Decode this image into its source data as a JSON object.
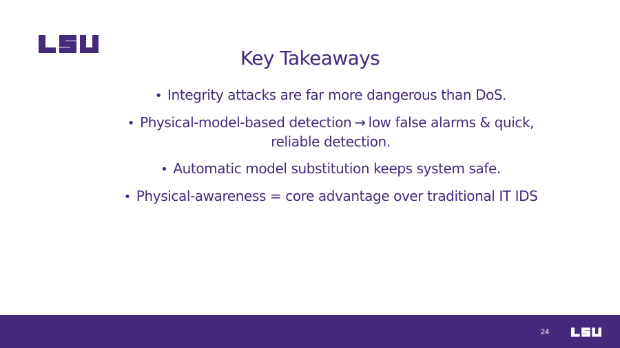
{
  "slide": {
    "title": "Key Takeaways",
    "logo_text": "LSU",
    "page_number": "24",
    "colors": {
      "accent": "#45297a",
      "text": "#44297a",
      "background": "#ffffff",
      "footer": "#45297a"
    },
    "bullets": [
      {
        "text": "Integrity attacks are far more dangerous than DoS."
      },
      {
        "before_arrow": "Physical-model-based detection",
        "arrow": "→",
        "after_arrow": "low false alarms & quick,",
        "continuation": "reliable detection."
      },
      {
        "text": "Automatic model substitution keeps system safe."
      },
      {
        "text": "Physical-awareness = core advantage over traditional IT IDS"
      }
    ]
  }
}
